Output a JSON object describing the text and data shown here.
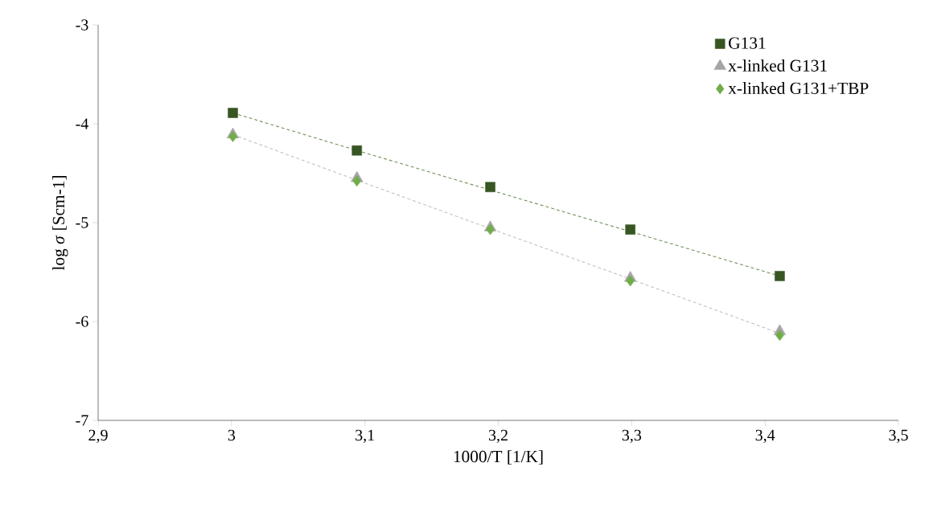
{
  "chart_data": {
    "type": "scatter",
    "xlabel": "1000/T [1/K]",
    "ylabel": "log *σ* [Scm-1]",
    "xlim": [
      2.9,
      3.5
    ],
    "ylim": [
      -7,
      -3
    ],
    "xticks": [
      {
        "value": 2.9,
        "label": "2,9"
      },
      {
        "value": 3.0,
        "label": "3"
      },
      {
        "value": 3.1,
        "label": "3,1"
      },
      {
        "value": 3.2,
        "label": "3,2"
      },
      {
        "value": 3.3,
        "label": "3,3"
      },
      {
        "value": 3.4,
        "label": "3,4"
      },
      {
        "value": 3.5,
        "label": "3,5"
      }
    ],
    "yticks": [
      -7,
      -6,
      -5,
      -4,
      -3
    ],
    "grid": false,
    "legend": "top right",
    "x": [
      3.001,
      3.094,
      3.194,
      3.299,
      3.411
    ],
    "series": [
      {
        "name": "G131",
        "color": "#375623",
        "marker": "square",
        "values": [
          -3.89,
          -4.27,
          -4.64,
          -5.07,
          -5.54
        ]
      },
      {
        "name": "x-linked G131",
        "color": "#a5a5a5",
        "marker": "triangle",
        "values": [
          -4.11,
          -4.55,
          -5.05,
          -5.56,
          -6.1
        ]
      },
      {
        "name": "x-linked G131+TBP",
        "color": "#70ad47",
        "marker": "diamond",
        "values": [
          -4.13,
          -4.58,
          -5.07,
          -5.59,
          -6.14
        ]
      },
      {
        "type": "line",
        "color": "#6f8f5a",
        "line_style": "dashed",
        "marker": "none",
        "values": [
          -3.89,
          -4.27,
          -4.67,
          -5.09,
          -5.54
        ]
      },
      {
        "type": "line",
        "color": "#c0c0c0",
        "line_style": "dashed",
        "marker": "none",
        "values": [
          -4.11,
          -4.57,
          -5.06,
          -5.57,
          -6.12
        ]
      }
    ]
  }
}
